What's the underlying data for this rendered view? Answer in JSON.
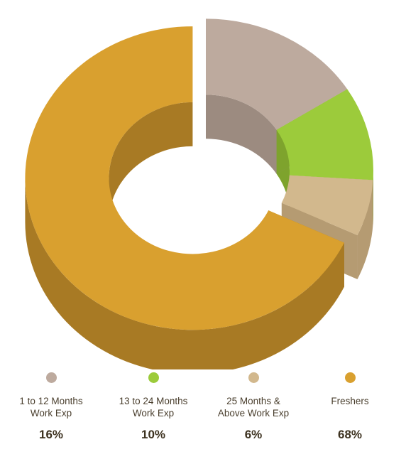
{
  "chart_data": {
    "type": "pie",
    "variant": "donut-3d",
    "title": "",
    "slices": [
      {
        "label": "1 to 12 Months\nWork Exp",
        "value": 16,
        "display": "16%",
        "color": "#bdaa9e",
        "side_color": "#9c8b80"
      },
      {
        "label": "13 to 24 Months\nWork Exp",
        "value": 10,
        "display": "10%",
        "color": "#9ccb3b",
        "side_color": "#7ea32d"
      },
      {
        "label": "25 Months &\nAbove Work Exp",
        "value": 6,
        "display": "6%",
        "color": "#d2b88d",
        "side_color": "#b59b72"
      },
      {
        "label": "Freshers",
        "value": 68,
        "display": "68%",
        "color": "#d9a02f",
        "side_color": "#a87a24"
      }
    ],
    "exploded": [
      "Freshers"
    ],
    "legend_position": "bottom"
  }
}
